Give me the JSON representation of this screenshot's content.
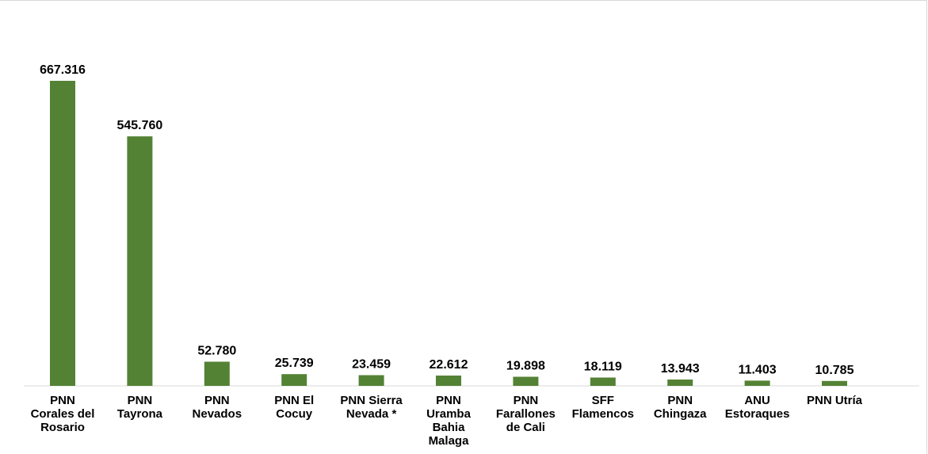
{
  "chart_data": {
    "type": "bar",
    "categories": [
      [
        "PNN",
        "Corales del",
        "Rosario"
      ],
      [
        "PNN",
        "Tayrona"
      ],
      [
        "PNN",
        "Nevados"
      ],
      [
        "PNN El",
        "Cocuy"
      ],
      [
        "PNN Sierra",
        "Nevada  *"
      ],
      [
        "PNN",
        "Uramba",
        "Bahia",
        "Malaga"
      ],
      [
        "PNN",
        "Farallones",
        "de Cali"
      ],
      [
        "SFF",
        "Flamencos"
      ],
      [
        "PNN",
        "Chingaza"
      ],
      [
        "ANU",
        "Estoraques"
      ],
      [
        "PNN Utría"
      ]
    ],
    "values": [
      667316,
      545760,
      52780,
      25739,
      23459,
      22612,
      19898,
      18119,
      13943,
      11403,
      10785
    ],
    "value_labels": [
      "667.316",
      "545.760",
      "52.780",
      "25.739",
      "23.459",
      "22.612",
      "19.898",
      "18.119",
      "13.943",
      "11.403",
      "10.785"
    ],
    "ylim": [
      0,
      667316
    ],
    "grid": false,
    "legend": "none",
    "colors": {
      "bar": "#548235",
      "axis": "#d9d9d9",
      "text": "#000000"
    }
  }
}
